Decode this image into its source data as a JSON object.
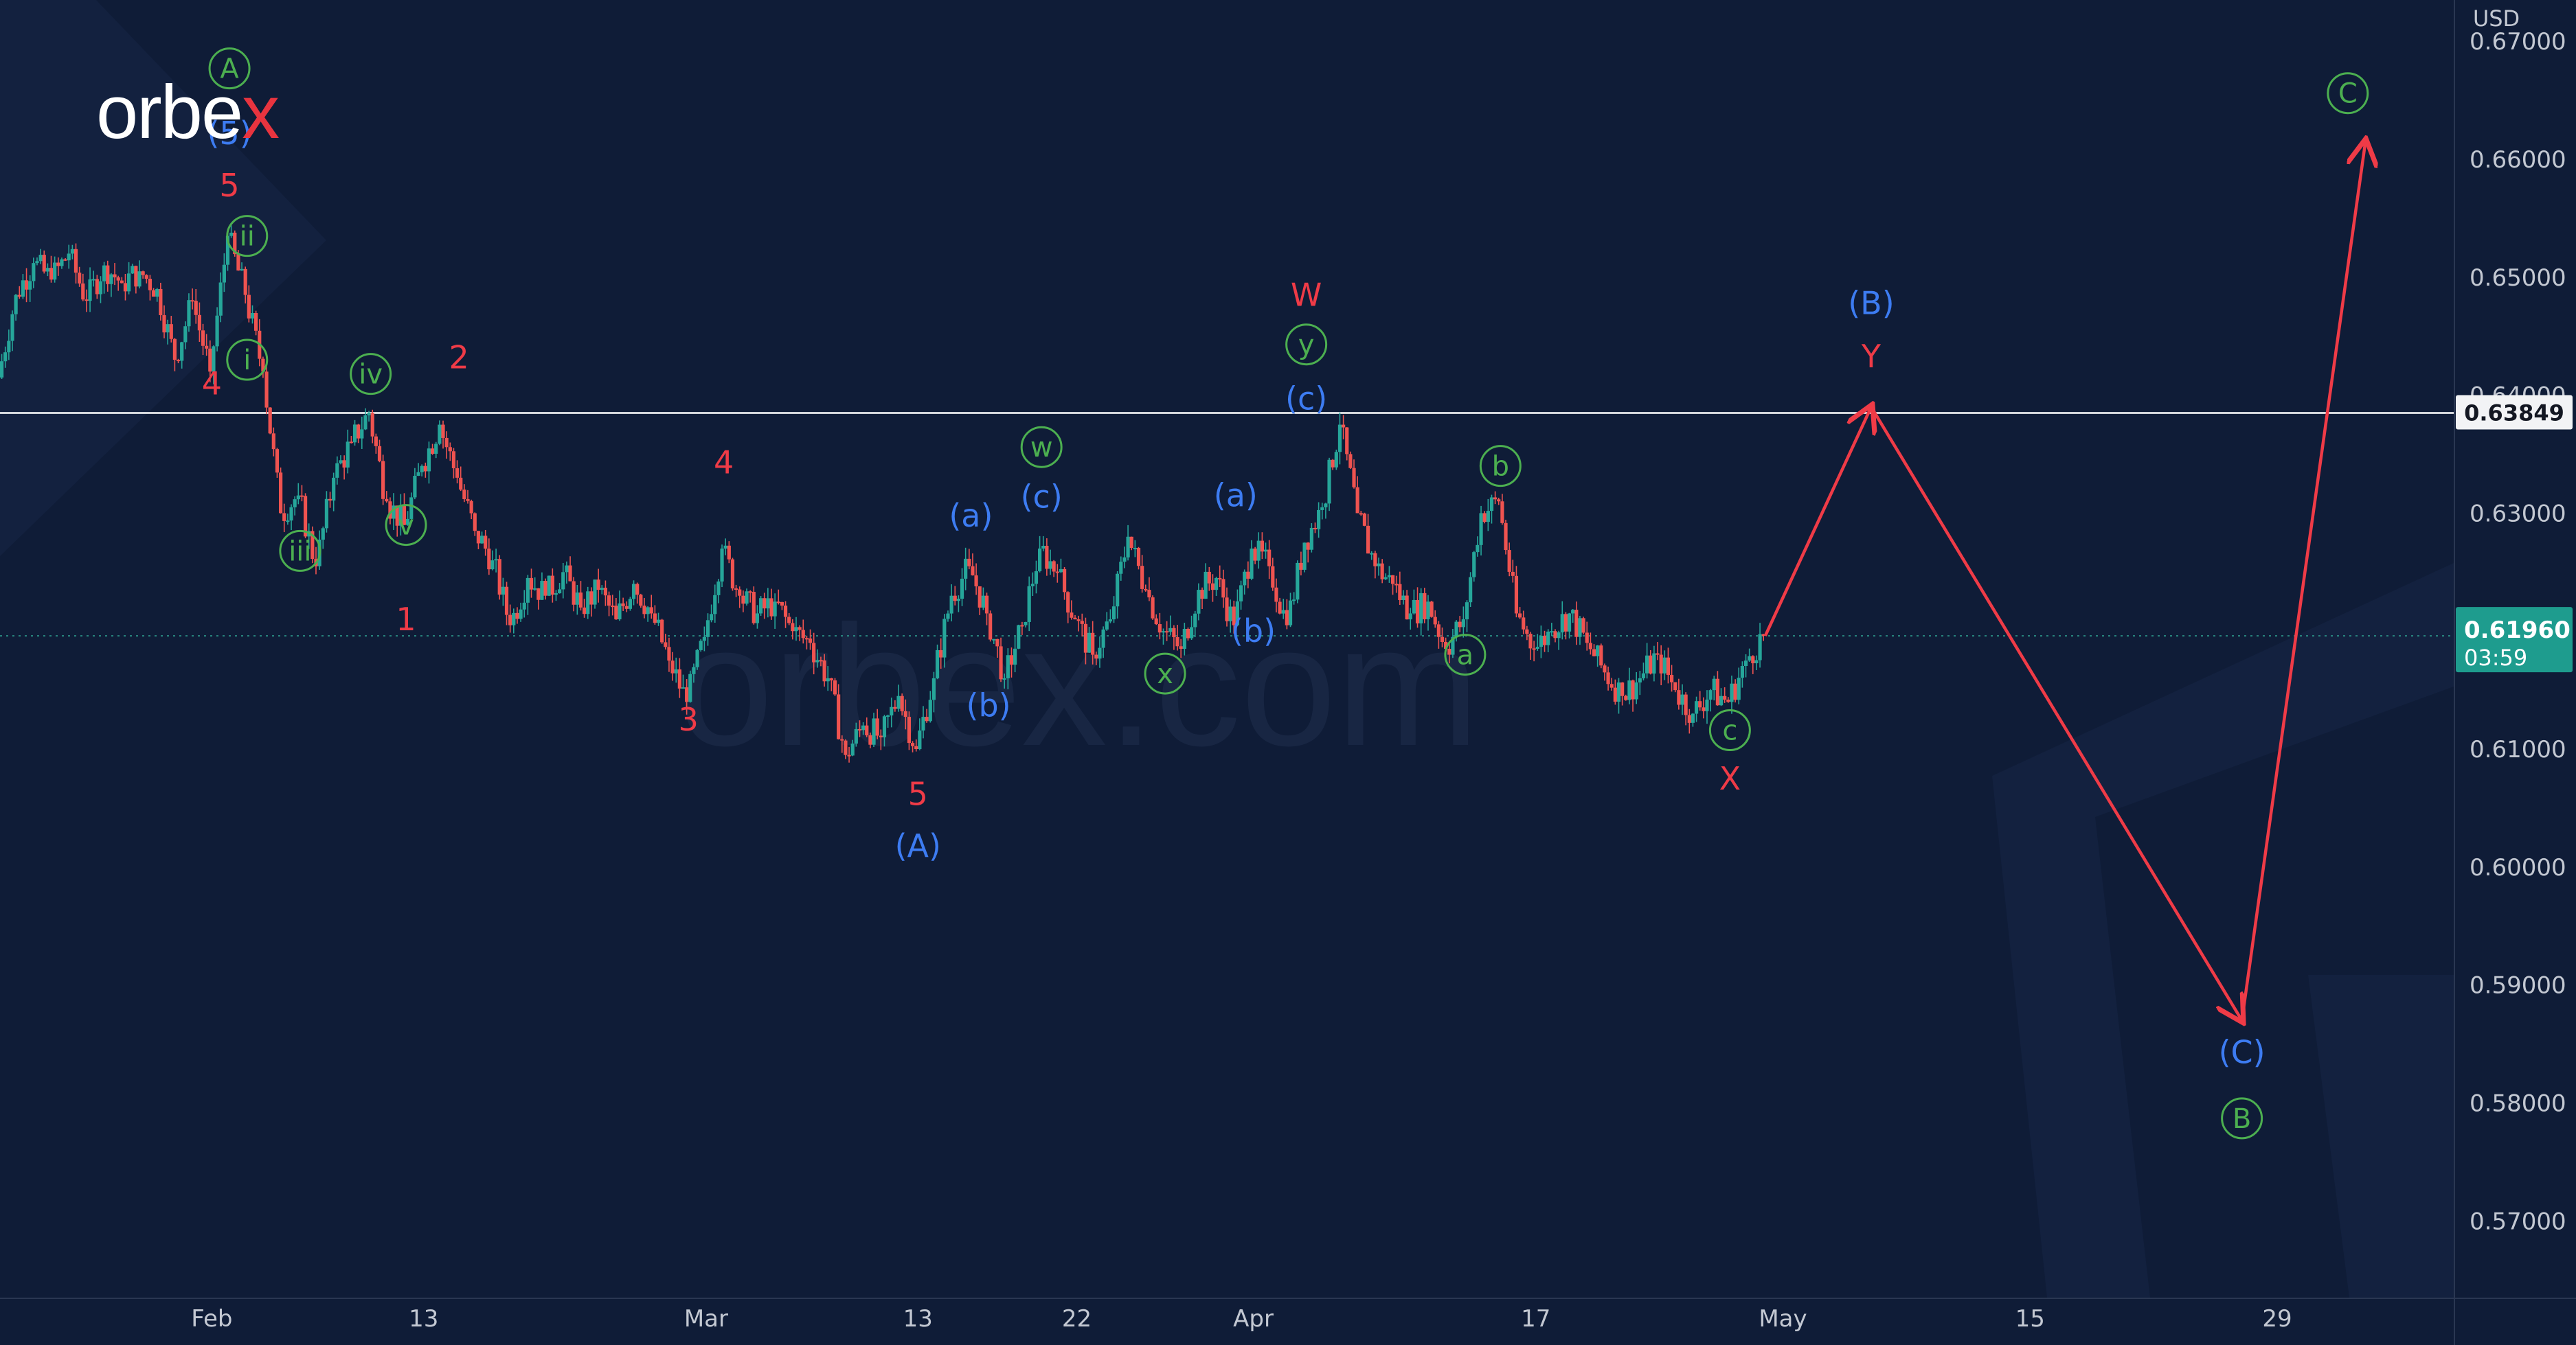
{
  "brand": {
    "logo_text_main": "orbe",
    "logo_text_x": "x",
    "watermark": "orbex.com"
  },
  "axis": {
    "currency": "USD",
    "price_ticks": [
      "0.67000",
      "0.66000",
      "0.65000",
      "0.64000",
      "0.63000",
      "0.62000",
      "0.61000",
      "0.60000",
      "0.59000",
      "0.58000",
      "0.57000"
    ],
    "date_ticks": [
      "Feb",
      "13",
      "Mar",
      "13",
      "22",
      "Apr",
      "17",
      "May",
      "15",
      "29"
    ]
  },
  "price_badges": {
    "reference_line": "0.63849",
    "current_price": "0.61960",
    "countdown": "03:59"
  },
  "colors": {
    "background": "#0f1c37",
    "red": "#ef3b47",
    "blue": "#3d7cf2",
    "green": "#4caf50",
    "candle_up": "#26a69a",
    "candle_down": "#ef5350",
    "current_price_badge": "#1e9c8e",
    "reference_line": "#ffffff"
  },
  "chart_data": {
    "type": "line",
    "series": [
      {
        "values": [
          {
            "x": "2023-01-20",
            "y": 0.6415
          },
          {
            "x": "2023-01-21",
            "y": 0.6485
          },
          {
            "x": "2023-01-22",
            "y": 0.6512
          },
          {
            "x": "2023-01-23",
            "y": 0.6498
          },
          {
            "x": "2023-01-24",
            "y": 0.652
          },
          {
            "x": "2023-01-25",
            "y": 0.648
          },
          {
            "x": "2023-01-26",
            "y": 0.651
          },
          {
            "x": "2023-01-27",
            "y": 0.6495
          },
          {
            "x": "2023-01-28",
            "y": 0.6505
          },
          {
            "x": "2023-01-29",
            "y": 0.649
          },
          {
            "x": "2023-01-30",
            "y": 0.643
          },
          {
            "x": "2023-01-31",
            "y": 0.648
          },
          {
            "x": "2023-02-01",
            "y": 0.642
          },
          {
            "x": "2023-02-02",
            "y": 0.6535
          },
          {
            "x": "2023-02-03",
            "y": 0.6485
          },
          {
            "x": "2023-02-04",
            "y": 0.642
          },
          {
            "x": "2023-02-05",
            "y": 0.63
          },
          {
            "x": "2023-02-06",
            "y": 0.6315
          },
          {
            "x": "2023-02-07",
            "y": 0.6255
          },
          {
            "x": "2023-02-08",
            "y": 0.633
          },
          {
            "x": "2023-02-09",
            "y": 0.636
          },
          {
            "x": "2023-02-10",
            "y": 0.6385
          },
          {
            "x": "2023-02-11",
            "y": 0.631
          },
          {
            "x": "2023-02-12",
            "y": 0.629
          },
          {
            "x": "2023-02-13",
            "y": 0.634
          },
          {
            "x": "2023-02-14",
            "y": 0.6375
          },
          {
            "x": "2023-02-15",
            "y": 0.633
          },
          {
            "x": "2023-02-16",
            "y": 0.6285
          },
          {
            "x": "2023-02-17",
            "y": 0.626
          },
          {
            "x": "2023-02-18",
            "y": 0.6205
          },
          {
            "x": "2023-02-19",
            "y": 0.6245
          },
          {
            "x": "2023-02-20",
            "y": 0.623
          },
          {
            "x": "2023-02-21",
            "y": 0.625
          },
          {
            "x": "2023-02-22",
            "y": 0.622
          },
          {
            "x": "2023-02-23",
            "y": 0.6235
          },
          {
            "x": "2023-02-24",
            "y": 0.621
          },
          {
            "x": "2023-02-25",
            "y": 0.624
          },
          {
            "x": "2023-02-26",
            "y": 0.6215
          },
          {
            "x": "2023-02-27",
            "y": 0.6175
          },
          {
            "x": "2023-02-28",
            "y": 0.614
          },
          {
            "x": "2023-03-01",
            "y": 0.6195
          },
          {
            "x": "2023-03-02",
            "y": 0.627
          },
          {
            "x": "2023-03-03",
            "y": 0.623
          },
          {
            "x": "2023-03-04",
            "y": 0.6215
          },
          {
            "x": "2023-03-05",
            "y": 0.6225
          },
          {
            "x": "2023-03-06",
            "y": 0.62
          },
          {
            "x": "2023-03-07",
            "y": 0.619
          },
          {
            "x": "2023-03-08",
            "y": 0.616
          },
          {
            "x": "2023-03-09",
            "y": 0.6095
          },
          {
            "x": "2023-03-10",
            "y": 0.612
          },
          {
            "x": "2023-03-11",
            "y": 0.611
          },
          {
            "x": "2023-03-12",
            "y": 0.6145
          },
          {
            "x": "2023-03-13",
            "y": 0.61
          },
          {
            "x": "2023-03-14",
            "y": 0.616
          },
          {
            "x": "2023-03-15",
            "y": 0.623
          },
          {
            "x": "2023-03-16",
            "y": 0.6255
          },
          {
            "x": "2023-03-17",
            "y": 0.6215
          },
          {
            "x": "2023-03-18",
            "y": 0.616
          },
          {
            "x": "2023-03-19",
            "y": 0.6205
          },
          {
            "x": "2023-03-20",
            "y": 0.627
          },
          {
            "x": "2023-03-21",
            "y": 0.625
          },
          {
            "x": "2023-03-22",
            "y": 0.621
          },
          {
            "x": "2023-03-23",
            "y": 0.618
          },
          {
            "x": "2023-03-24",
            "y": 0.621
          },
          {
            "x": "2023-03-25",
            "y": 0.628
          },
          {
            "x": "2023-03-26",
            "y": 0.6235
          },
          {
            "x": "2023-03-27",
            "y": 0.62
          },
          {
            "x": "2023-03-28",
            "y": 0.6185
          },
          {
            "x": "2023-03-29",
            "y": 0.6235
          },
          {
            "x": "2023-03-30",
            "y": 0.6245
          },
          {
            "x": "2023-03-31",
            "y": 0.6205
          },
          {
            "x": "2023-04-01",
            "y": 0.627
          },
          {
            "x": "2023-04-02",
            "y": 0.6255
          },
          {
            "x": "2023-04-03",
            "y": 0.6205
          },
          {
            "x": "2023-04-04",
            "y": 0.6275
          },
          {
            "x": "2023-04-05",
            "y": 0.6305
          },
          {
            "x": "2023-04-06",
            "y": 0.6375
          },
          {
            "x": "2023-04-07",
            "y": 0.63
          },
          {
            "x": "2023-04-08",
            "y": 0.6255
          },
          {
            "x": "2023-04-09",
            "y": 0.624
          },
          {
            "x": "2023-04-10",
            "y": 0.6215
          },
          {
            "x": "2023-04-11",
            "y": 0.6225
          },
          {
            "x": "2023-04-12",
            "y": 0.6185
          },
          {
            "x": "2023-04-13",
            "y": 0.621
          },
          {
            "x": "2023-04-14",
            "y": 0.63
          },
          {
            "x": "2023-04-15",
            "y": 0.631
          },
          {
            "x": "2023-04-16",
            "y": 0.6215
          },
          {
            "x": "2023-04-17",
            "y": 0.6185
          },
          {
            "x": "2023-04-18",
            "y": 0.62
          },
          {
            "x": "2023-04-19",
            "y": 0.6215
          },
          {
            "x": "2023-04-20",
            "y": 0.619
          },
          {
            "x": "2023-04-21",
            "y": 0.6165
          },
          {
            "x": "2023-04-22",
            "y": 0.6145
          },
          {
            "x": "2023-04-23",
            "y": 0.616
          },
          {
            "x": "2023-04-24",
            "y": 0.618
          },
          {
            "x": "2023-04-25",
            "y": 0.615
          },
          {
            "x": "2023-04-26",
            "y": 0.613
          },
          {
            "x": "2023-04-27",
            "y": 0.615
          },
          {
            "x": "2023-04-28",
            "y": 0.614
          },
          {
            "x": "2023-04-29",
            "y": 0.6175
          },
          {
            "x": "2023-04-30",
            "y": 0.6196
          }
        ]
      },
      {
        "values": [
          {
            "x": "2023-04-30",
            "y": 0.6196
          },
          {
            "x": "2023-05-06",
            "y": 0.639
          },
          {
            "x": "2023-05-27",
            "y": 0.587
          },
          {
            "x": "2023-06-03",
            "y": 0.6615
          }
        ]
      }
    ],
    "reference_line": 0.63849,
    "current_price": 0.6196,
    "xlim": [
      "2023-01-20",
      "2023-06-08"
    ],
    "ylim": [
      0.5635,
      0.6735
    ],
    "annotations": [
      {
        "label": "A",
        "style": "circled",
        "color": "green",
        "x": "2023-02-02",
        "y": 0.6677
      },
      {
        "label": "(5)",
        "style": "plain",
        "color": "blue",
        "x": "2023-02-02",
        "y": 0.6622
      },
      {
        "label": "5",
        "style": "plain",
        "color": "red",
        "x": "2023-02-02",
        "y": 0.6578
      },
      {
        "label": "ii",
        "style": "circled",
        "color": "green",
        "x": "2023-02-03",
        "y": 0.6535
      },
      {
        "label": "i",
        "style": "circled",
        "color": "green",
        "x": "2023-02-03",
        "y": 0.643
      },
      {
        "label": "4",
        "style": "plain",
        "color": "red",
        "x": "2023-02-01",
        "y": 0.641
      },
      {
        "label": "iv",
        "style": "circled",
        "color": "green",
        "x": "2023-02-10",
        "y": 0.6418
      },
      {
        "label": "2",
        "style": "plain",
        "color": "red",
        "x": "2023-02-15",
        "y": 0.6432
      },
      {
        "label": "iii",
        "style": "circled",
        "color": "green",
        "x": "2023-02-06",
        "y": 0.6268
      },
      {
        "label": "v",
        "style": "circled",
        "color": "green",
        "x": "2023-02-12",
        "y": 0.629
      },
      {
        "label": "1",
        "style": "plain",
        "color": "red",
        "x": "2023-02-12",
        "y": 0.621
      },
      {
        "label": "4",
        "style": "plain",
        "color": "red",
        "x": "2023-03-02",
        "y": 0.6343
      },
      {
        "label": "3",
        "style": "plain",
        "color": "red",
        "x": "2023-02-28",
        "y": 0.6125
      },
      {
        "label": "5",
        "style": "plain",
        "color": "red",
        "x": "2023-03-13",
        "y": 0.6062
      },
      {
        "label": "(A)",
        "style": "plain",
        "color": "blue",
        "x": "2023-03-13",
        "y": 0.6018
      },
      {
        "label": "(a)",
        "style": "plain",
        "color": "blue",
        "x": "2023-03-16",
        "y": 0.6298
      },
      {
        "label": "(b)",
        "style": "plain",
        "color": "blue",
        "x": "2023-03-17",
        "y": 0.6137
      },
      {
        "label": "w",
        "style": "circled",
        "color": "green",
        "x": "2023-03-20",
        "y": 0.6356
      },
      {
        "label": "(c)",
        "style": "plain",
        "color": "blue",
        "x": "2023-03-20",
        "y": 0.6314
      },
      {
        "label": "x",
        "style": "circled",
        "color": "green",
        "x": "2023-03-27",
        "y": 0.6164
      },
      {
        "label": "(a)",
        "style": "plain",
        "color": "blue",
        "x": "2023-03-31",
        "y": 0.6315
      },
      {
        "label": "(b)",
        "style": "plain",
        "color": "blue",
        "x": "2023-04-01",
        "y": 0.62
      },
      {
        "label": "W",
        "style": "plain",
        "color": "red",
        "x": "2023-04-04",
        "y": 0.6485
      },
      {
        "label": "y",
        "style": "circled",
        "color": "green",
        "x": "2023-04-04",
        "y": 0.6443
      },
      {
        "label": "(c)",
        "style": "plain",
        "color": "blue",
        "x": "2023-04-04",
        "y": 0.6397
      },
      {
        "label": "b",
        "style": "circled",
        "color": "green",
        "x": "2023-04-15",
        "y": 0.634
      },
      {
        "label": "a",
        "style": "circled",
        "color": "green",
        "x": "2023-04-13",
        "y": 0.618
      },
      {
        "label": "c",
        "style": "circled",
        "color": "green",
        "x": "2023-04-28",
        "y": 0.6116
      },
      {
        "label": "X",
        "style": "plain",
        "color": "red",
        "x": "2023-04-28",
        "y": 0.6075
      },
      {
        "label": "(B)",
        "style": "plain",
        "color": "blue",
        "x": "2023-05-06",
        "y": 0.6478
      },
      {
        "label": "Y",
        "style": "plain",
        "color": "red",
        "x": "2023-05-06",
        "y": 0.6433
      },
      {
        "label": "(C)",
        "style": "plain",
        "color": "blue",
        "x": "2023-05-27",
        "y": 0.5843
      },
      {
        "label": "B",
        "style": "circled",
        "color": "green",
        "x": "2023-05-27",
        "y": 0.5787
      },
      {
        "label": "C",
        "style": "circled",
        "color": "green",
        "x": "2023-06-02",
        "y": 0.6656
      }
    ],
    "grid": false
  }
}
